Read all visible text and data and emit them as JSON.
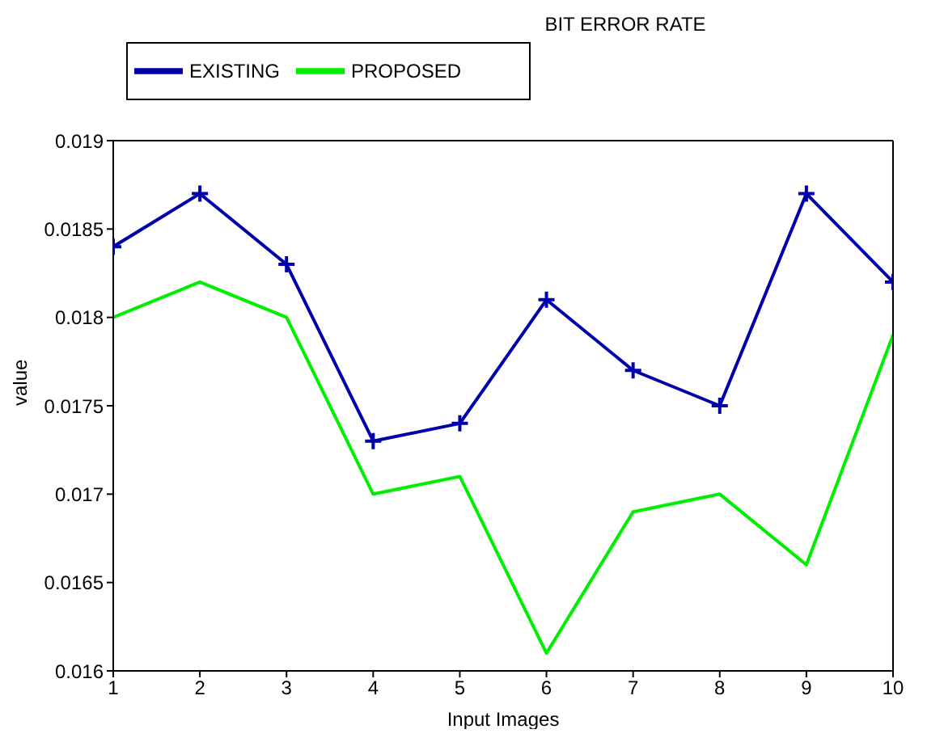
{
  "chart_data": {
    "type": "line",
    "title": "BIT ERROR RATE",
    "xlabel": "Input Images",
    "ylabel": "value",
    "x": [
      1,
      2,
      3,
      4,
      5,
      6,
      7,
      8,
      9,
      10
    ],
    "series": [
      {
        "name": "EXISTING",
        "color": "#0000aa",
        "marker": "cross",
        "values": [
          0.0184,
          0.0187,
          0.0183,
          0.0173,
          0.0174,
          0.0181,
          0.0177,
          0.0175,
          0.0187,
          0.0182
        ]
      },
      {
        "name": "PROPOSED",
        "color": "#00ee00",
        "marker": "none",
        "values": [
          0.018,
          0.0182,
          0.018,
          0.017,
          0.0171,
          0.0161,
          0.0169,
          0.017,
          0.0166,
          0.0179
        ]
      }
    ],
    "xlim": [
      1,
      10
    ],
    "xticks": [
      1,
      2,
      3,
      4,
      5,
      6,
      7,
      8,
      9,
      10
    ],
    "ylim": [
      0.016,
      0.019
    ],
    "yticks": [
      0.016,
      0.0165,
      0.017,
      0.0175,
      0.018,
      0.0185,
      0.019
    ],
    "grid": false,
    "legend": "top left",
    "line_style": "solid"
  }
}
